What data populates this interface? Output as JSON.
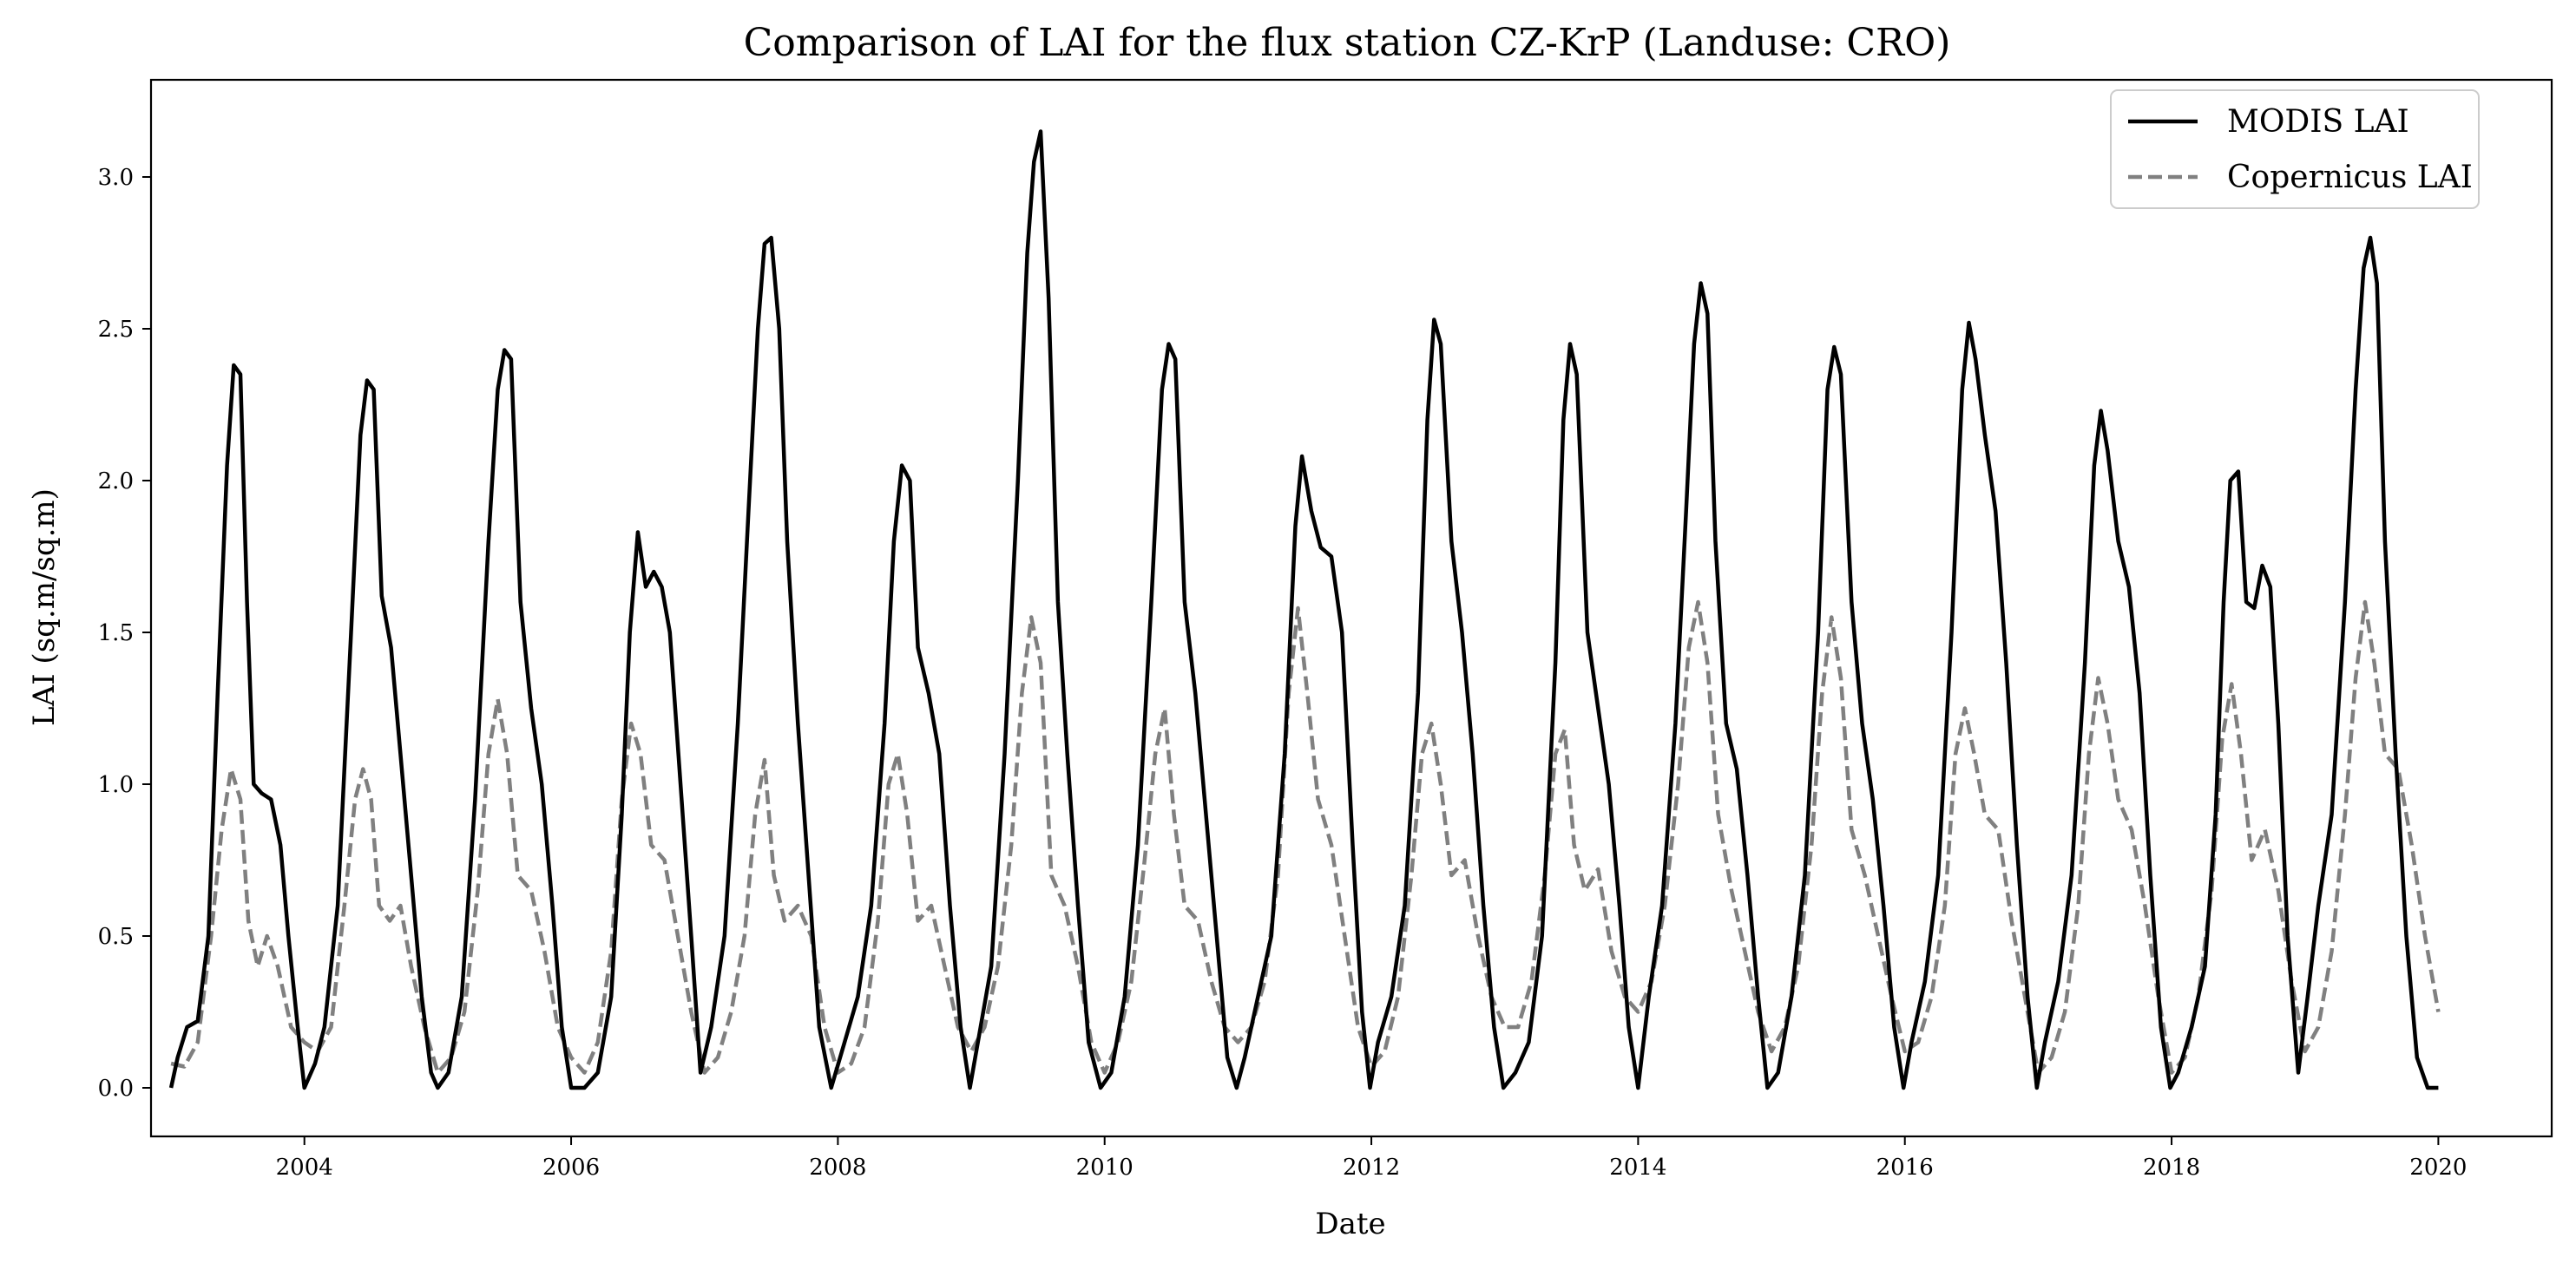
{
  "chart_data": {
    "type": "line",
    "title": "Comparison of LAI for the flux station CZ-KrP (Landuse: CRO)",
    "xlabel": "Date",
    "ylabel": "LAI (sq.m/sq.m)",
    "xlim": [
      2002.85,
      2020.85
    ],
    "ylim": [
      -0.16,
      3.32
    ],
    "x_ticks": [
      2004,
      2006,
      2008,
      2010,
      2012,
      2014,
      2016,
      2018,
      2020
    ],
    "x_tick_labels": [
      "2004",
      "2006",
      "2008",
      "2010",
      "2012",
      "2014",
      "2016",
      "2018",
      "2020"
    ],
    "y_ticks": [
      0.0,
      0.5,
      1.0,
      1.5,
      2.0,
      2.5,
      3.0
    ],
    "y_tick_labels": [
      "0.0",
      "0.5",
      "1.0",
      "1.5",
      "2.0",
      "2.5",
      "3.0"
    ],
    "grid": false,
    "legend_position": "top-right",
    "series": [
      {
        "name": "MODIS LAI",
        "color": "#000000",
        "style": "solid",
        "x": [
          2003.0,
          2003.05,
          2003.12,
          2003.2,
          2003.28,
          2003.35,
          2003.42,
          2003.47,
          2003.52,
          2003.57,
          2003.62,
          2003.68,
          2003.75,
          2003.82,
          2003.88,
          2003.95,
          2004.0,
          2004.08,
          2004.15,
          2004.25,
          2004.35,
          2004.42,
          2004.47,
          2004.52,
          2004.58,
          2004.65,
          2004.72,
          2004.8,
          2004.88,
          2004.95,
          2005.0,
          2005.08,
          2005.18,
          2005.28,
          2005.38,
          2005.45,
          2005.5,
          2005.55,
          2005.62,
          2005.7,
          2005.78,
          2005.86,
          2005.93,
          2006.0,
          2006.1,
          2006.2,
          2006.3,
          2006.38,
          2006.44,
          2006.5,
          2006.56,
          2006.62,
          2006.68,
          2006.74,
          2006.82,
          2006.9,
          2006.97,
          2007.05,
          2007.15,
          2007.25,
          2007.33,
          2007.4,
          2007.45,
          2007.5,
          2007.56,
          2007.62,
          2007.7,
          2007.78,
          2007.86,
          2007.95,
          2008.05,
          2008.15,
          2008.25,
          2008.35,
          2008.42,
          2008.48,
          2008.54,
          2008.6,
          2008.68,
          2008.76,
          2008.84,
          2008.92,
          2008.99,
          2009.05,
          2009.15,
          2009.25,
          2009.35,
          2009.42,
          2009.47,
          2009.52,
          2009.58,
          2009.65,
          2009.72,
          2009.8,
          2009.88,
          2009.97,
          2010.05,
          2010.15,
          2010.25,
          2010.35,
          2010.43,
          2010.48,
          2010.53,
          2010.6,
          2010.68,
          2010.76,
          2010.84,
          2010.92,
          2010.99,
          2011.05,
          2011.15,
          2011.25,
          2011.35,
          2011.43,
          2011.48,
          2011.55,
          2011.62,
          2011.7,
          2011.78,
          2011.86,
          2011.93,
          2011.99,
          2012.05,
          2012.15,
          2012.25,
          2012.35,
          2012.42,
          2012.47,
          2012.52,
          2012.6,
          2012.68,
          2012.76,
          2012.84,
          2012.92,
          2012.99,
          2013.08,
          2013.18,
          2013.28,
          2013.38,
          2013.44,
          2013.49,
          2013.54,
          2013.62,
          2013.7,
          2013.78,
          2013.86,
          2013.93,
          2014.0,
          2014.08,
          2014.18,
          2014.28,
          2014.36,
          2014.42,
          2014.47,
          2014.52,
          2014.58,
          2014.66,
          2014.74,
          2014.82,
          2014.9,
          2014.97,
          2015.05,
          2015.15,
          2015.25,
          2015.35,
          2015.42,
          2015.47,
          2015.52,
          2015.6,
          2015.68,
          2015.76,
          2015.84,
          2015.92,
          2015.99,
          2016.05,
          2016.15,
          2016.25,
          2016.35,
          2016.43,
          2016.48,
          2016.53,
          2016.6,
          2016.68,
          2016.76,
          2016.84,
          2016.92,
          2016.99,
          2017.05,
          2017.15,
          2017.25,
          2017.35,
          2017.42,
          2017.47,
          2017.52,
          2017.6,
          2017.68,
          2017.76,
          2017.84,
          2017.92,
          2017.99,
          2018.05,
          2018.15,
          2018.25,
          2018.33,
          2018.39,
          2018.44,
          2018.5,
          2018.56,
          2018.62,
          2018.68,
          2018.74,
          2018.8,
          2018.87,
          2018.95,
          2019.02,
          2019.1,
          2019.2,
          2019.3,
          2019.38,
          2019.44,
          2019.49,
          2019.54,
          2019.6,
          2019.68,
          2019.76,
          2019.84,
          2019.92,
          2020.0
        ],
        "y": [
          0.0,
          0.1,
          0.2,
          0.22,
          0.5,
          1.3,
          2.05,
          2.38,
          2.35,
          1.6,
          1.0,
          0.97,
          0.95,
          0.8,
          0.5,
          0.2,
          0.0,
          0.08,
          0.2,
          0.6,
          1.5,
          2.15,
          2.33,
          2.3,
          1.62,
          1.45,
          1.1,
          0.7,
          0.3,
          0.05,
          0.0,
          0.05,
          0.3,
          0.95,
          1.8,
          2.3,
          2.43,
          2.4,
          1.6,
          1.25,
          1.0,
          0.6,
          0.2,
          0.0,
          0.0,
          0.05,
          0.3,
          0.9,
          1.5,
          1.83,
          1.65,
          1.7,
          1.65,
          1.5,
          1.0,
          0.5,
          0.05,
          0.2,
          0.5,
          1.2,
          1.9,
          2.5,
          2.78,
          2.8,
          2.5,
          1.8,
          1.2,
          0.7,
          0.2,
          0.0,
          0.15,
          0.3,
          0.6,
          1.2,
          1.8,
          2.05,
          2.0,
          1.45,
          1.3,
          1.1,
          0.6,
          0.2,
          0.0,
          0.15,
          0.4,
          1.1,
          2.0,
          2.75,
          3.05,
          3.15,
          2.6,
          1.6,
          1.1,
          0.6,
          0.15,
          0.0,
          0.05,
          0.3,
          0.8,
          1.6,
          2.3,
          2.45,
          2.4,
          1.6,
          1.3,
          0.9,
          0.5,
          0.1,
          0.0,
          0.1,
          0.3,
          0.5,
          1.1,
          1.85,
          2.08,
          1.9,
          1.78,
          1.75,
          1.5,
          0.8,
          0.25,
          0.0,
          0.15,
          0.3,
          0.6,
          1.3,
          2.2,
          2.53,
          2.45,
          1.8,
          1.5,
          1.1,
          0.6,
          0.2,
          0.0,
          0.05,
          0.15,
          0.5,
          1.4,
          2.2,
          2.45,
          2.35,
          1.5,
          1.25,
          1.0,
          0.6,
          0.2,
          0.0,
          0.3,
          0.6,
          1.2,
          1.9,
          2.45,
          2.65,
          2.55,
          1.8,
          1.2,
          1.05,
          0.7,
          0.3,
          0.0,
          0.05,
          0.3,
          0.7,
          1.5,
          2.3,
          2.44,
          2.35,
          1.6,
          1.2,
          0.95,
          0.6,
          0.2,
          0.0,
          0.15,
          0.35,
          0.7,
          1.5,
          2.3,
          2.52,
          2.4,
          2.15,
          1.9,
          1.4,
          0.8,
          0.3,
          0.0,
          0.15,
          0.35,
          0.7,
          1.4,
          2.05,
          2.23,
          2.1,
          1.8,
          1.65,
          1.3,
          0.7,
          0.2,
          0.0,
          0.05,
          0.2,
          0.4,
          0.9,
          1.6,
          2.0,
          2.03,
          1.6,
          1.58,
          1.72,
          1.65,
          1.2,
          0.5,
          0.05,
          0.3,
          0.6,
          0.9,
          1.6,
          2.3,
          2.7,
          2.8,
          2.65,
          1.8,
          1.1,
          0.5,
          0.1,
          0.0,
          0.0
        ]
      },
      {
        "name": "Copernicus LAI",
        "color": "#808080",
        "style": "dashed",
        "x": [
          2003.0,
          2003.1,
          2003.2,
          2003.3,
          2003.38,
          2003.45,
          2003.52,
          2003.58,
          2003.65,
          2003.72,
          2003.8,
          2003.9,
          2004.0,
          2004.1,
          2004.2,
          2004.3,
          2004.38,
          2004.44,
          2004.5,
          2004.56,
          2004.64,
          2004.72,
          2004.8,
          2004.9,
          2005.0,
          2005.1,
          2005.2,
          2005.3,
          2005.38,
          2005.45,
          2005.52,
          2005.6,
          2005.7,
          2005.8,
          2005.9,
          2006.0,
          2006.1,
          2006.2,
          2006.3,
          2006.38,
          2006.45,
          2006.52,
          2006.6,
          2006.7,
          2006.8,
          2006.9,
          2007.0,
          2007.1,
          2007.2,
          2007.3,
          2007.38,
          2007.45,
          2007.52,
          2007.6,
          2007.7,
          2007.8,
          2007.9,
          2008.0,
          2008.1,
          2008.2,
          2008.3,
          2008.38,
          2008.45,
          2008.52,
          2008.6,
          2008.7,
          2008.8,
          2008.9,
          2009.0,
          2009.1,
          2009.2,
          2009.3,
          2009.38,
          2009.45,
          2009.52,
          2009.6,
          2009.7,
          2009.8,
          2009.9,
          2010.0,
          2010.1,
          2010.2,
          2010.3,
          2010.38,
          2010.45,
          2010.52,
          2010.6,
          2010.7,
          2010.8,
          2010.9,
          2011.0,
          2011.1,
          2011.2,
          2011.3,
          2011.38,
          2011.45,
          2011.52,
          2011.6,
          2011.7,
          2011.8,
          2011.9,
          2012.0,
          2012.1,
          2012.2,
          2012.3,
          2012.38,
          2012.45,
          2012.52,
          2012.6,
          2012.7,
          2012.8,
          2012.9,
          2013.0,
          2013.1,
          2013.2,
          2013.3,
          2013.38,
          2013.45,
          2013.52,
          2013.6,
          2013.7,
          2013.8,
          2013.9,
          2014.0,
          2014.1,
          2014.2,
          2014.3,
          2014.38,
          2014.45,
          2014.52,
          2014.6,
          2014.7,
          2014.8,
          2014.9,
          2015.0,
          2015.1,
          2015.2,
          2015.3,
          2015.38,
          2015.45,
          2015.52,
          2015.6,
          2015.7,
          2015.8,
          2015.9,
          2016.0,
          2016.1,
          2016.2,
          2016.3,
          2016.38,
          2016.45,
          2016.52,
          2016.6,
          2016.7,
          2016.8,
          2016.9,
          2017.0,
          2017.1,
          2017.2,
          2017.3,
          2017.38,
          2017.45,
          2017.52,
          2017.6,
          2017.7,
          2017.8,
          2017.9,
          2018.0,
          2018.1,
          2018.2,
          2018.3,
          2018.38,
          2018.45,
          2018.52,
          2018.6,
          2018.7,
          2018.8,
          2018.9,
          2019.0,
          2019.1,
          2019.2,
          2019.3,
          2019.38,
          2019.45,
          2019.52,
          2019.6,
          2019.7,
          2019.8,
          2019.9,
          2020.0
        ],
        "y": [
          0.08,
          0.07,
          0.15,
          0.5,
          0.85,
          1.05,
          0.95,
          0.55,
          0.4,
          0.5,
          0.4,
          0.2,
          0.15,
          0.12,
          0.2,
          0.6,
          0.95,
          1.05,
          0.95,
          0.6,
          0.55,
          0.6,
          0.4,
          0.2,
          0.05,
          0.1,
          0.25,
          0.65,
          1.1,
          1.28,
          1.1,
          0.7,
          0.65,
          0.45,
          0.2,
          0.1,
          0.05,
          0.15,
          0.45,
          0.95,
          1.2,
          1.1,
          0.8,
          0.75,
          0.5,
          0.25,
          0.05,
          0.1,
          0.25,
          0.5,
          0.9,
          1.08,
          0.7,
          0.55,
          0.6,
          0.5,
          0.2,
          0.05,
          0.08,
          0.2,
          0.55,
          1.0,
          1.1,
          0.9,
          0.55,
          0.6,
          0.4,
          0.2,
          0.12,
          0.2,
          0.4,
          0.8,
          1.3,
          1.55,
          1.4,
          0.7,
          0.6,
          0.4,
          0.15,
          0.05,
          0.15,
          0.35,
          0.75,
          1.1,
          1.25,
          0.9,
          0.6,
          0.55,
          0.35,
          0.2,
          0.15,
          0.2,
          0.35,
          0.7,
          1.3,
          1.58,
          1.3,
          0.95,
          0.8,
          0.5,
          0.2,
          0.07,
          0.12,
          0.3,
          0.7,
          1.1,
          1.2,
          1.0,
          0.7,
          0.75,
          0.5,
          0.3,
          0.2,
          0.2,
          0.35,
          0.7,
          1.1,
          1.18,
          0.8,
          0.65,
          0.72,
          0.45,
          0.3,
          0.25,
          0.35,
          0.6,
          1.0,
          1.45,
          1.6,
          1.4,
          0.9,
          0.65,
          0.45,
          0.25,
          0.12,
          0.2,
          0.4,
          0.8,
          1.3,
          1.55,
          1.35,
          0.85,
          0.7,
          0.5,
          0.3,
          0.12,
          0.15,
          0.3,
          0.6,
          1.1,
          1.25,
          1.1,
          0.9,
          0.85,
          0.55,
          0.3,
          0.05,
          0.1,
          0.25,
          0.6,
          1.1,
          1.35,
          1.2,
          0.95,
          0.85,
          0.6,
          0.3,
          0.05,
          0.1,
          0.3,
          0.65,
          1.15,
          1.33,
          1.1,
          0.75,
          0.85,
          0.65,
          0.35,
          0.12,
          0.2,
          0.45,
          0.9,
          1.35,
          1.6,
          1.4,
          1.1,
          1.05,
          0.8,
          0.5,
          0.25
        ]
      }
    ]
  }
}
